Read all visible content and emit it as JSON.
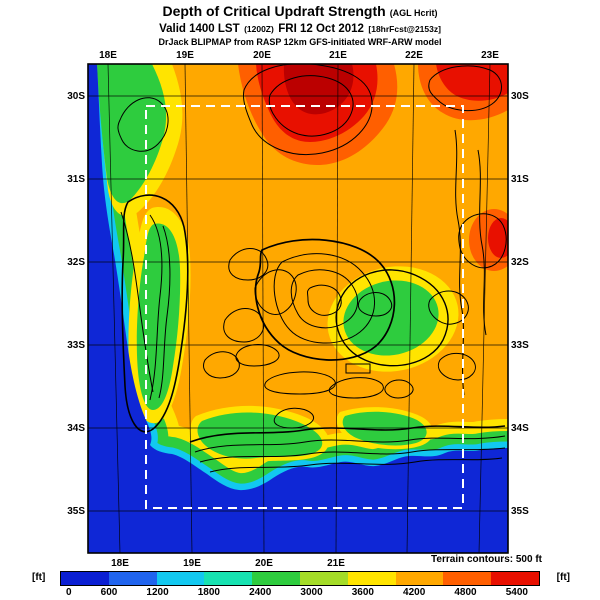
{
  "header": {
    "title_main": "Depth of Critical Updraft Strength",
    "title_suffix": "(AGL Hcrit)",
    "valid_prefix": "Valid 1400 LST",
    "valid_zulu": "(1200Z)",
    "valid_date": "FRI 12 Oct 2012",
    "valid_fcst": "[18hrFcst@2153z]",
    "model_line": "DrJack BLIPMAP from RASP 12km GFS-initiated WRF-ARW model"
  },
  "map": {
    "lon_top_labels": [
      "18E",
      "19E",
      "20E",
      "21E",
      "22E",
      "23E"
    ],
    "lon_bottom_labels": [
      "18E",
      "19E",
      "20E",
      "21E"
    ],
    "lat_left_labels": [
      "30S",
      "31S",
      "32S",
      "33S",
      "34S",
      "35S"
    ],
    "lat_right_labels": [
      "30S",
      "31S",
      "32S",
      "33S",
      "34S",
      "35S"
    ]
  },
  "footer": {
    "terrain_note": "Terrain contours: 500 ft",
    "units_left": "[ft]",
    "units_right": "[ft]"
  },
  "colorbar": {
    "ticks": [
      "0",
      "600",
      "1200",
      "1800",
      "2400",
      "3000",
      "3600",
      "4200",
      "4800",
      "5400"
    ],
    "colors": [
      "#0b1fd3",
      "#2064ee",
      "#12c8f0",
      "#17e2b1",
      "#2ecc3e",
      "#a4dc28",
      "#ffe400",
      "#ffa800",
      "#ff5f00",
      "#e81000"
    ]
  },
  "chart_data": {
    "type": "heatmap",
    "title": "Depth of Critical Updraft Strength (AGL Hcrit)",
    "valid": "Valid 1400 LST (1200Z) FRI 12 Oct 2012 [18hrFcst@2153z]",
    "model": "DrJack BLIPMAP from RASP 12km GFS-initiated WRF-ARW model",
    "units": "ft",
    "x": [
      "18E",
      "19E",
      "20E",
      "21E",
      "22E",
      "23E"
    ],
    "y": [
      "30S",
      "31S",
      "32S",
      "33S",
      "34S",
      "35S"
    ],
    "values_estimated_ft": [
      [
        1800,
        3600,
        4800,
        5000,
        4200,
        4800
      ],
      [
        600,
        3600,
        4200,
        4200,
        4200,
        4200
      ],
      [
        0,
        2400,
        3600,
        2400,
        4200,
        4200
      ],
      [
        0,
        1800,
        3000,
        3000,
        3600,
        4200
      ],
      [
        0,
        1800,
        2400,
        3000,
        3600,
        3600
      ],
      [
        0,
        0,
        0,
        0,
        0,
        0
      ]
    ],
    "colorbar": {
      "units": "ft",
      "ticks": [
        0,
        600,
        1200,
        1800,
        2400,
        3000,
        3600,
        4200,
        4800,
        5400
      ],
      "colors": [
        "#0b1fd3",
        "#2064ee",
        "#12c8f0",
        "#17e2b1",
        "#2ecc3e",
        "#a4dc28",
        "#ffe400",
        "#ffa800",
        "#ff5f00",
        "#e81000"
      ]
    },
    "overlays": [
      "terrain contours every 500 ft (black lines)",
      "inner model domain (white dashed box)"
    ],
    "ocean_value": 0,
    "legend_position": "bottom",
    "grid": true
  }
}
